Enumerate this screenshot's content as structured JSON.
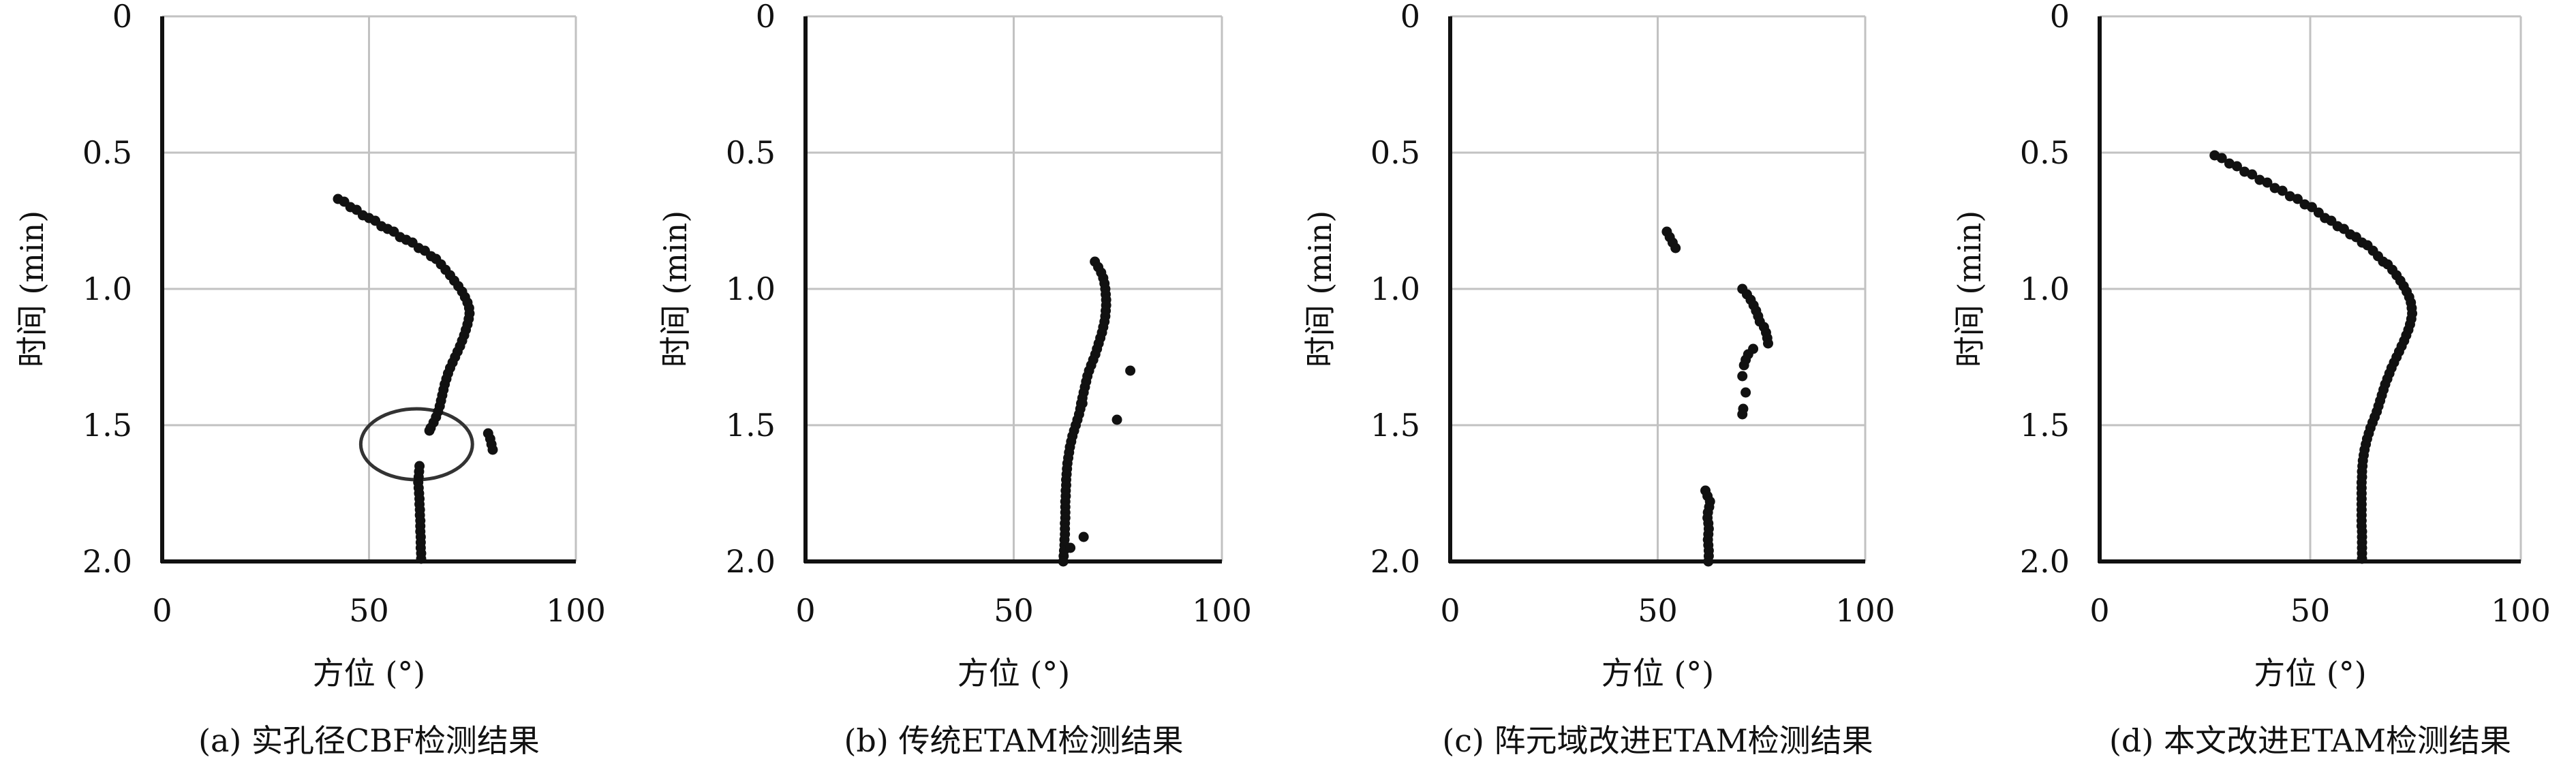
{
  "figure": {
    "panels": [
      {
        "caption": "(a) 实孔径CBF检测结果"
      },
      {
        "caption": "(b) 传统ETAM检测结果"
      },
      {
        "caption": "(c) 阵元域改进ETAM检测结果"
      },
      {
        "caption": "(d) 本文改进ETAM检测结果"
      }
    ]
  },
  "chart_data": [
    {
      "type": "scatter",
      "caption": "(a) 实孔径CBF检测结果",
      "xlabel": "方位 (°)",
      "ylabel": "时间 (min)",
      "xlim": [
        0,
        100
      ],
      "ylim": [
        2.0,
        0
      ],
      "x_ticks": [
        "0",
        "50",
        "100"
      ],
      "y_ticks": [
        "0",
        "0.5",
        "1.0",
        "1.5",
        "2.0"
      ],
      "grid": true,
      "annotation": "ellipse",
      "annotation_region": {
        "x_center": 61.5,
        "y_center": 1.57,
        "x_radius": 13.5,
        "y_radius": 0.13
      },
      "points": [
        [
          42.5,
          0.67
        ],
        [
          44,
          0.68
        ],
        [
          45.5,
          0.7
        ],
        [
          47,
          0.71
        ],
        [
          48.5,
          0.73
        ],
        [
          50,
          0.74
        ],
        [
          51.5,
          0.75
        ],
        [
          53,
          0.77
        ],
        [
          54.5,
          0.78
        ],
        [
          56,
          0.79
        ],
        [
          57.5,
          0.81
        ],
        [
          59,
          0.82
        ],
        [
          60.5,
          0.83
        ],
        [
          62,
          0.85
        ],
        [
          63.5,
          0.86
        ],
        [
          65,
          0.88
        ],
        [
          66.2,
          0.89
        ],
        [
          67.4,
          0.91
        ],
        [
          68.5,
          0.93
        ],
        [
          69.6,
          0.95
        ],
        [
          70.6,
          0.97
        ],
        [
          71.6,
          0.99
        ],
        [
          72.5,
          1.01
        ],
        [
          73.2,
          1.03
        ],
        [
          73.8,
          1.05
        ],
        [
          74.2,
          1.07
        ],
        [
          74.3,
          1.09
        ],
        [
          74.1,
          1.11
        ],
        [
          73.8,
          1.13
        ],
        [
          73.4,
          1.15
        ],
        [
          73,
          1.17
        ],
        [
          72.5,
          1.19
        ],
        [
          72,
          1.21
        ],
        [
          71.4,
          1.23
        ],
        [
          70.8,
          1.25
        ],
        [
          70.2,
          1.27
        ],
        [
          69.6,
          1.29
        ],
        [
          69.1,
          1.31
        ],
        [
          68.7,
          1.33
        ],
        [
          68.3,
          1.35
        ],
        [
          68,
          1.37
        ],
        [
          67.7,
          1.39
        ],
        [
          67.4,
          1.41
        ],
        [
          67.1,
          1.43
        ],
        [
          66.7,
          1.45
        ],
        [
          66.2,
          1.47
        ],
        [
          65.6,
          1.49
        ],
        [
          64.9,
          1.51
        ],
        [
          64.6,
          1.52
        ],
        [
          78.8,
          1.53
        ],
        [
          79.3,
          1.55
        ],
        [
          79.6,
          1.57
        ],
        [
          79.9,
          1.59
        ],
        [
          62.2,
          1.65
        ],
        [
          62.1,
          1.67
        ],
        [
          62,
          1.69
        ],
        [
          61.9,
          1.71
        ],
        [
          62,
          1.73
        ],
        [
          62.1,
          1.75
        ],
        [
          62.2,
          1.77
        ],
        [
          62.2,
          1.79
        ],
        [
          62.3,
          1.81
        ],
        [
          62.3,
          1.83
        ],
        [
          62.4,
          1.85
        ],
        [
          62.4,
          1.87
        ],
        [
          62.4,
          1.89
        ],
        [
          62.5,
          1.91
        ],
        [
          62.5,
          1.93
        ],
        [
          62.5,
          1.95
        ],
        [
          62.6,
          1.97
        ],
        [
          62.6,
          1.99
        ]
      ]
    },
    {
      "type": "scatter",
      "caption": "(b) 传统ETAM检测结果",
      "xlabel": "方位 (°)",
      "ylabel": "时间 (min)",
      "xlim": [
        0,
        100
      ],
      "ylim": [
        2.0,
        0
      ],
      "x_ticks": [
        "0",
        "50",
        "100"
      ],
      "y_ticks": [
        "0",
        "0.5",
        "1.0",
        "1.5",
        "2.0"
      ],
      "grid": true,
      "points": [
        [
          69.5,
          0.9
        ],
        [
          70.3,
          0.92
        ],
        [
          71,
          0.94
        ],
        [
          71.5,
          0.96
        ],
        [
          71.8,
          0.98
        ],
        [
          72,
          1.0
        ],
        [
          72.1,
          1.02
        ],
        [
          72.2,
          1.04
        ],
        [
          72.2,
          1.06
        ],
        [
          72.1,
          1.08
        ],
        [
          72,
          1.1
        ],
        [
          71.8,
          1.12
        ],
        [
          71.5,
          1.14
        ],
        [
          71.2,
          1.16
        ],
        [
          70.8,
          1.18
        ],
        [
          70.4,
          1.2
        ],
        [
          70,
          1.22
        ],
        [
          69.6,
          1.24
        ],
        [
          69.1,
          1.26
        ],
        [
          68.6,
          1.28
        ],
        [
          68.1,
          1.3
        ],
        [
          67.7,
          1.32
        ],
        [
          67.4,
          1.34
        ],
        [
          67.1,
          1.36
        ],
        [
          66.8,
          1.38
        ],
        [
          66.5,
          1.4
        ],
        [
          66.2,
          1.42
        ],
        [
          66,
          1.44
        ],
        [
          65.7,
          1.46
        ],
        [
          65.3,
          1.48
        ],
        [
          64.9,
          1.5
        ],
        [
          64.5,
          1.52
        ],
        [
          64.1,
          1.54
        ],
        [
          63.8,
          1.56
        ],
        [
          63.5,
          1.58
        ],
        [
          63.3,
          1.6
        ],
        [
          63.1,
          1.62
        ],
        [
          62.9,
          1.64
        ],
        [
          62.8,
          1.66
        ],
        [
          62.7,
          1.68
        ],
        [
          62.6,
          1.7
        ],
        [
          62.6,
          1.72
        ],
        [
          62.5,
          1.74
        ],
        [
          62.5,
          1.76
        ],
        [
          62.4,
          1.78
        ],
        [
          62.4,
          1.8
        ],
        [
          62.4,
          1.82
        ],
        [
          62.4,
          1.84
        ],
        [
          62.3,
          1.86
        ],
        [
          62.3,
          1.88
        ],
        [
          62.3,
          1.9
        ],
        [
          62.2,
          1.92
        ],
        [
          62.2,
          1.94
        ],
        [
          62.1,
          1.96
        ],
        [
          62,
          1.98
        ],
        [
          61.9,
          2.0
        ],
        [
          78,
          1.3
        ],
        [
          74.8,
          1.48
        ],
        [
          66.5,
          1.42
        ],
        [
          66.8,
          1.91
        ],
        [
          63.6,
          1.95
        ]
      ]
    },
    {
      "type": "scatter",
      "caption": "(c) 阵元域改进ETAM检测结果",
      "xlabel": "方位 (°)",
      "ylabel": "时间 (min)",
      "xlim": [
        0,
        100
      ],
      "ylim": [
        2.0,
        0
      ],
      "x_ticks": [
        "0",
        "50",
        "100"
      ],
      "y_ticks": [
        "0",
        "0.5",
        "1.0",
        "1.5",
        "2.0"
      ],
      "grid": true,
      "points": [
        [
          52.2,
          0.79
        ],
        [
          52.9,
          0.81
        ],
        [
          53.6,
          0.83
        ],
        [
          54.3,
          0.85
        ],
        [
          70.4,
          1.0
        ],
        [
          71.5,
          1.02
        ],
        [
          72.4,
          1.04
        ],
        [
          73.1,
          1.06
        ],
        [
          73.7,
          1.08
        ],
        [
          74.2,
          1.1
        ],
        [
          74.6,
          1.12
        ],
        [
          75.6,
          1.14
        ],
        [
          76.1,
          1.16
        ],
        [
          76.4,
          1.18
        ],
        [
          76.6,
          1.2
        ],
        [
          73,
          1.22
        ],
        [
          71.8,
          1.24
        ],
        [
          71.2,
          1.26
        ],
        [
          70.8,
          1.28
        ],
        [
          70.4,
          1.32
        ],
        [
          71.2,
          1.38
        ],
        [
          70.6,
          1.44
        ],
        [
          70.4,
          1.46
        ],
        [
          61.5,
          1.74
        ],
        [
          62,
          1.76
        ],
        [
          62.6,
          1.78
        ],
        [
          62.4,
          1.8
        ],
        [
          62.1,
          1.82
        ],
        [
          62,
          1.84
        ],
        [
          62.2,
          1.86
        ],
        [
          62.3,
          1.88
        ],
        [
          62.2,
          1.9
        ],
        [
          62.1,
          1.92
        ],
        [
          62.2,
          1.94
        ],
        [
          62.3,
          1.96
        ],
        [
          62.3,
          1.98
        ],
        [
          62.2,
          2.0
        ]
      ]
    },
    {
      "type": "scatter",
      "caption": "(d) 本文改进ETAM检测结果",
      "xlabel": "方位 (°)",
      "ylabel": "时间 (min)",
      "xlim": [
        0,
        100
      ],
      "ylim": [
        2.0,
        0
      ],
      "x_ticks": [
        "0",
        "50",
        "100"
      ],
      "y_ticks": [
        "0",
        "0.5",
        "1.0",
        "1.5",
        "2.0"
      ],
      "grid": true,
      "points": [
        [
          27.3,
          0.51
        ],
        [
          29,
          0.52
        ],
        [
          30.8,
          0.54
        ],
        [
          32.6,
          0.55
        ],
        [
          34.4,
          0.57
        ],
        [
          36.2,
          0.58
        ],
        [
          38,
          0.6
        ],
        [
          39.8,
          0.61
        ],
        [
          41.6,
          0.63
        ],
        [
          43.4,
          0.64
        ],
        [
          45.2,
          0.66
        ],
        [
          47,
          0.67
        ],
        [
          48.7,
          0.69
        ],
        [
          50.4,
          0.7
        ],
        [
          52,
          0.72
        ],
        [
          53.5,
          0.74
        ],
        [
          55,
          0.75
        ],
        [
          56.5,
          0.77
        ],
        [
          58,
          0.78
        ],
        [
          59.5,
          0.8
        ],
        [
          60.9,
          0.81
        ],
        [
          62.3,
          0.83
        ],
        [
          63.6,
          0.84
        ],
        [
          64.9,
          0.86
        ],
        [
          66.1,
          0.88
        ],
        [
          67.3,
          0.9
        ],
        [
          68.4,
          0.91
        ],
        [
          69.5,
          0.93
        ],
        [
          70.5,
          0.95
        ],
        [
          71.4,
          0.97
        ],
        [
          72.2,
          0.99
        ],
        [
          72.9,
          1.01
        ],
        [
          73.5,
          1.03
        ],
        [
          73.9,
          1.05
        ],
        [
          74.1,
          1.07
        ],
        [
          74.2,
          1.09
        ],
        [
          74,
          1.11
        ],
        [
          73.7,
          1.13
        ],
        [
          73.3,
          1.15
        ],
        [
          72.8,
          1.17
        ],
        [
          72.3,
          1.19
        ],
        [
          71.7,
          1.21
        ],
        [
          71.1,
          1.23
        ],
        [
          70.5,
          1.25
        ],
        [
          69.9,
          1.27
        ],
        [
          69.3,
          1.29
        ],
        [
          68.8,
          1.31
        ],
        [
          68.3,
          1.33
        ],
        [
          67.8,
          1.35
        ],
        [
          67.4,
          1.37
        ],
        [
          67,
          1.39
        ],
        [
          66.6,
          1.41
        ],
        [
          66.2,
          1.43
        ],
        [
          65.8,
          1.45
        ],
        [
          65.3,
          1.47
        ],
        [
          64.8,
          1.49
        ],
        [
          64.3,
          1.51
        ],
        [
          63.9,
          1.53
        ],
        [
          63.5,
          1.55
        ],
        [
          63.2,
          1.57
        ],
        [
          62.9,
          1.59
        ],
        [
          62.7,
          1.61
        ],
        [
          62.5,
          1.63
        ],
        [
          62.4,
          1.65
        ],
        [
          62.3,
          1.67
        ],
        [
          62.3,
          1.69
        ],
        [
          62.2,
          1.71
        ],
        [
          62.2,
          1.73
        ],
        [
          62.2,
          1.75
        ],
        [
          62.2,
          1.77
        ],
        [
          62.2,
          1.79
        ],
        [
          62.2,
          1.81
        ],
        [
          62.2,
          1.83
        ],
        [
          62.2,
          1.85
        ],
        [
          62.2,
          1.87
        ],
        [
          62.3,
          1.89
        ],
        [
          62.3,
          1.91
        ],
        [
          62.3,
          1.93
        ],
        [
          62.3,
          1.95
        ],
        [
          62.3,
          1.97
        ],
        [
          62.3,
          1.99
        ]
      ]
    }
  ]
}
